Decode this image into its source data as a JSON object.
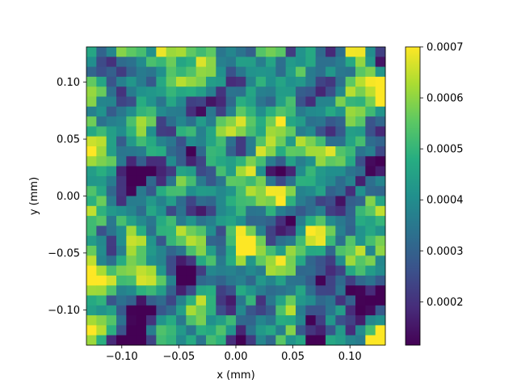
{
  "chart_data": {
    "type": "heatmap",
    "title": "",
    "xlabel": "x (mm)",
    "ylabel": "y (mm)",
    "xlim": [
      -0.131,
      0.131
    ],
    "ylim": [
      -0.131,
      0.131
    ],
    "grid": false,
    "colormap": "viridis",
    "grid_shape": [
      30,
      30
    ],
    "x_ticks": [
      {
        "value": -0.1,
        "label": "−0.10"
      },
      {
        "value": -0.05,
        "label": "−0.05"
      },
      {
        "value": 0.0,
        "label": "0.00"
      },
      {
        "value": 0.05,
        "label": "0.05"
      },
      {
        "value": 0.1,
        "label": "0.10"
      }
    ],
    "y_ticks": [
      {
        "value": -0.1,
        "label": "−0.10"
      },
      {
        "value": -0.05,
        "label": "−0.05"
      },
      {
        "value": 0.0,
        "label": "0.00"
      },
      {
        "value": 0.05,
        "label": "0.05"
      },
      {
        "value": 0.1,
        "label": "0.10"
      }
    ],
    "colorbar": {
      "vmin": 0.000115,
      "vmax": 0.0007,
      "ticks": [
        {
          "value": 0.0002,
          "label": "0.0002"
        },
        {
          "value": 0.0003,
          "label": "0.0003"
        },
        {
          "value": 0.0004,
          "label": "0.0004"
        },
        {
          "value": 0.0005,
          "label": "0.0005"
        },
        {
          "value": 0.0006,
          "label": "0.0006"
        },
        {
          "value": 0.0007,
          "label": "0.0007"
        }
      ]
    }
  }
}
